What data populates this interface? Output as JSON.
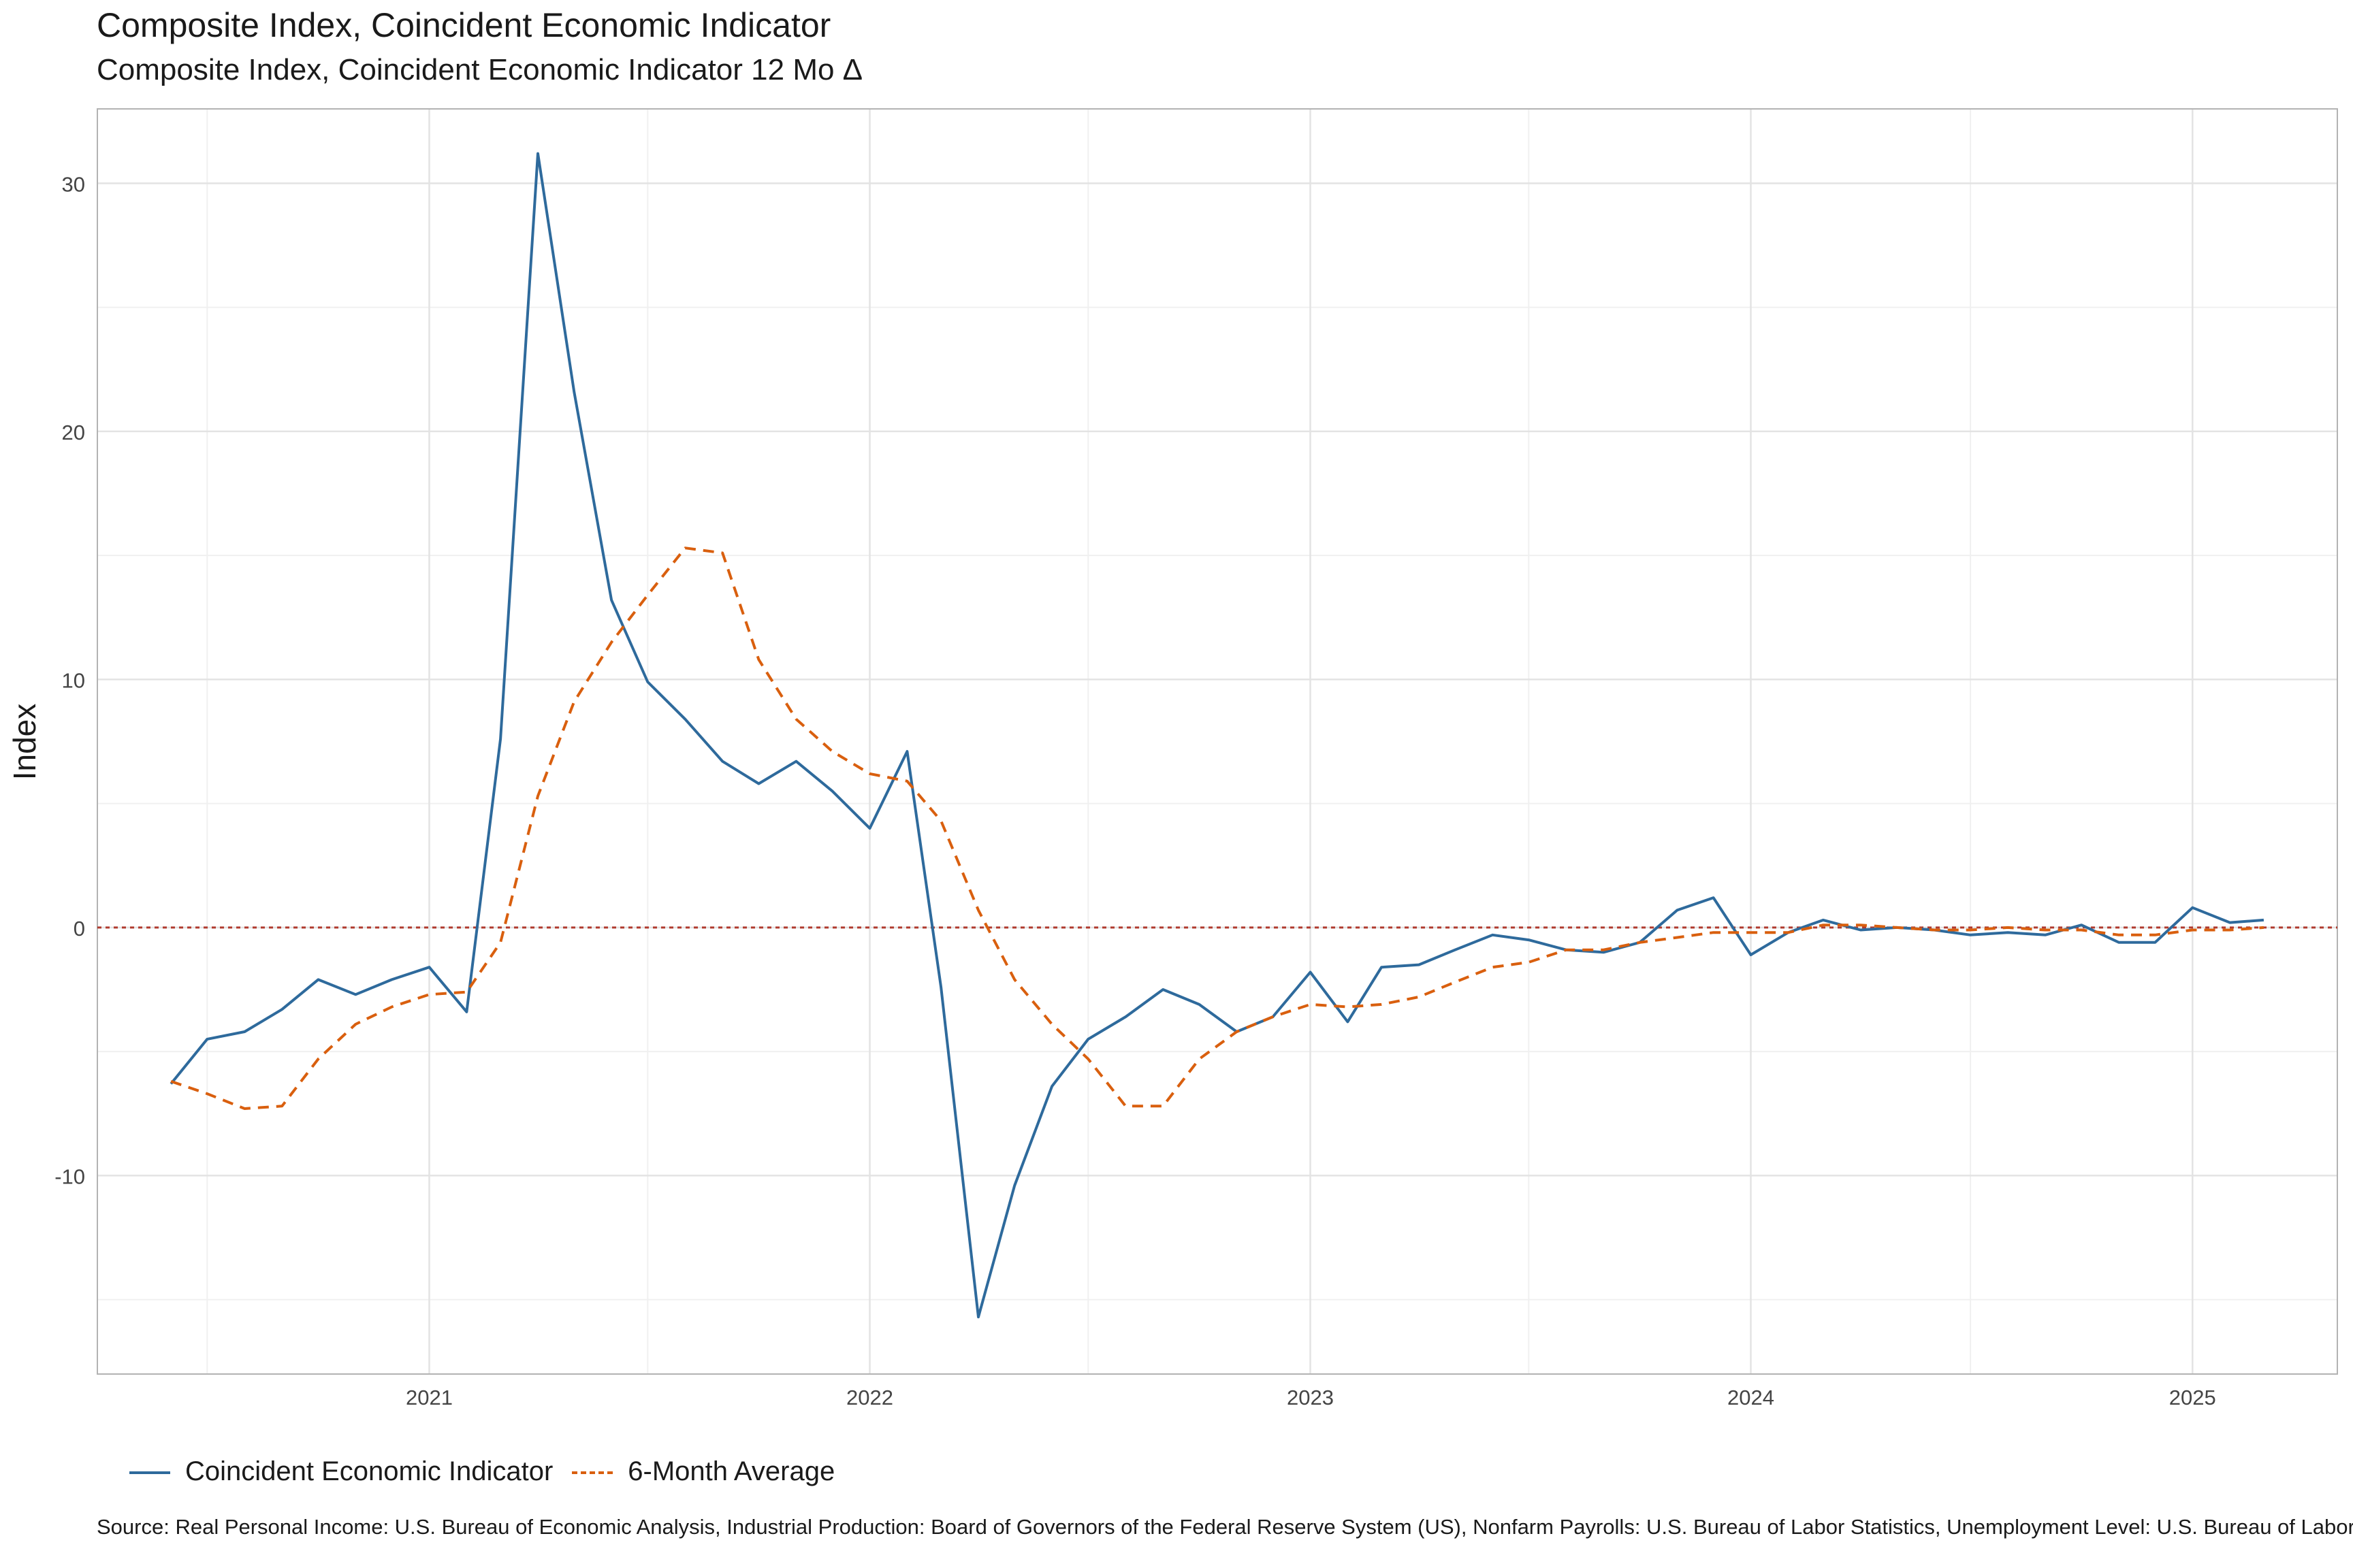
{
  "chart_data": {
    "type": "line",
    "title": "Composite Index, Coincident Economic Indicator",
    "subtitle": "Composite Index, Coincident Economic Indicator 12 Mo Δ",
    "ylabel": "Index",
    "xlabel": "",
    "xlim": [
      "2020-04-01",
      "2025-05-01"
    ],
    "ylim": [
      -18,
      33
    ],
    "x_ticks": [
      "2021",
      "2022",
      "2023",
      "2024",
      "2025"
    ],
    "y_ticks": [
      -10,
      0,
      10,
      20,
      30
    ],
    "reference_line": 0,
    "grid": true,
    "legend_position": "bottom-left",
    "source": "Source:  Real Personal Income: U.S. Bureau of Economic Analysis, Industrial Production: Board of Governors of the Federal Reserve System (US), Nonfarm Payrolls: U.S. Bureau of Labor Statistics, Unemployment Level:  U.S. Bureau of Labor Statistics",
    "dates": [
      "2020-06",
      "2020-07",
      "2020-08",
      "2020-09",
      "2020-10",
      "2020-11",
      "2020-12",
      "2021-01",
      "2021-02",
      "2021-03",
      "2021-04",
      "2021-05",
      "2021-06",
      "2021-07",
      "2021-08",
      "2021-09",
      "2021-10",
      "2021-11",
      "2021-12",
      "2022-01",
      "2022-02",
      "2022-03",
      "2022-04",
      "2022-05",
      "2022-06",
      "2022-07",
      "2022-08",
      "2022-09",
      "2022-10",
      "2022-11",
      "2022-12",
      "2023-01",
      "2023-02",
      "2023-03",
      "2023-04",
      "2023-05",
      "2023-06",
      "2023-07",
      "2023-08",
      "2023-09",
      "2023-10",
      "2023-11",
      "2023-12",
      "2024-01",
      "2024-02",
      "2024-03",
      "2024-04",
      "2024-05",
      "2024-06",
      "2024-07",
      "2024-08",
      "2024-09",
      "2024-10",
      "2024-11",
      "2024-12",
      "2025-01",
      "2025-02",
      "2025-03"
    ],
    "series": [
      {
        "name": "Coincident Economic Indicator",
        "color": "#2E6A9C",
        "style": "solid",
        "values": [
          -6.3,
          -4.5,
          -4.2,
          -3.3,
          -2.1,
          -2.7,
          -2.1,
          -1.6,
          -3.4,
          7.6,
          31.2,
          21.6,
          13.2,
          9.9,
          8.4,
          6.7,
          5.8,
          6.7,
          5.5,
          4.0,
          7.1,
          -2.4,
          -15.7,
          -10.4,
          -6.4,
          -4.5,
          -3.6,
          -2.5,
          -3.1,
          -4.2,
          -3.6,
          -1.8,
          -3.8,
          -1.6,
          -1.5,
          -0.9,
          -0.3,
          -0.5,
          -0.9,
          -1.0,
          -0.6,
          0.7,
          1.2,
          -1.1,
          -0.2,
          0.3,
          -0.1,
          0.0,
          -0.1,
          -0.3,
          -0.2,
          -0.3,
          0.1,
          -0.6,
          -0.6,
          0.8,
          0.2,
          0.3
        ]
      },
      {
        "name": "6-Month Average",
        "color": "#D95F0E",
        "style": "dashed",
        "values": [
          -6.2,
          -6.7,
          -7.3,
          -7.2,
          -5.3,
          -3.9,
          -3.2,
          -2.7,
          -2.6,
          -0.6,
          5.3,
          9.1,
          11.5,
          13.4,
          15.3,
          15.1,
          10.8,
          8.4,
          7.1,
          6.2,
          5.9,
          4.3,
          0.7,
          -2.1,
          -3.9,
          -5.3,
          -7.2,
          -7.2,
          -5.3,
          -4.2,
          -3.6,
          -3.1,
          -3.2,
          -3.1,
          -2.8,
          -2.2,
          -1.6,
          -1.4,
          -0.9,
          -0.9,
          -0.6,
          -0.4,
          -0.2,
          -0.2,
          -0.2,
          0.1,
          0.1,
          0.0,
          -0.1,
          -0.1,
          0.0,
          -0.1,
          -0.1,
          -0.3,
          -0.3,
          -0.1,
          -0.1,
          0.0
        ]
      }
    ]
  }
}
